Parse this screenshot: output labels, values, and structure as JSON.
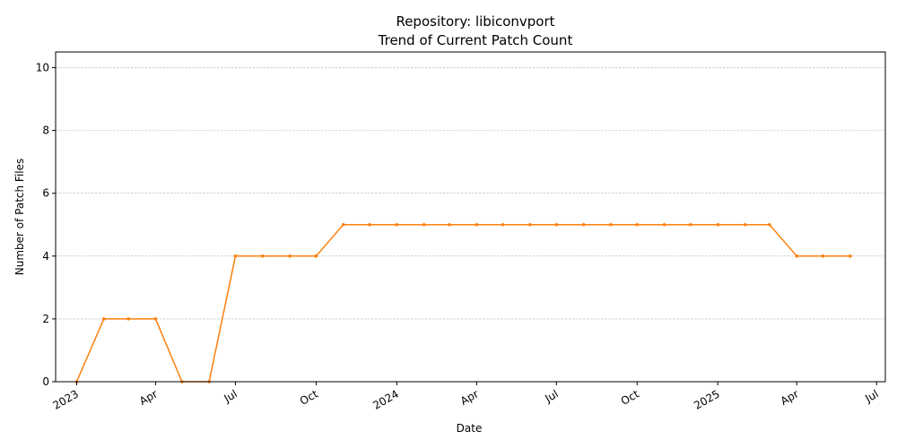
{
  "chart_data": {
    "type": "line",
    "title": "Repository: libiconvport",
    "subtitle": "Trend of Current Patch Count",
    "xlabel": "Date",
    "ylabel": "Number of Patch Files",
    "xlim": [
      "2022-12-08",
      "2025-07-11"
    ],
    "ylim": [
      0,
      10.5
    ],
    "grid": "horizontal dashed",
    "color": "#ff7f0e",
    "grid_color": "#b0b0b0",
    "x_ticks": [
      {
        "date": "2023-01-01",
        "label": "2023"
      },
      {
        "date": "2023-04-01",
        "label": "Apr"
      },
      {
        "date": "2023-07-01",
        "label": "Jul"
      },
      {
        "date": "2023-10-01",
        "label": "Oct"
      },
      {
        "date": "2024-01-01",
        "label": "2024"
      },
      {
        "date": "2024-04-01",
        "label": "Apr"
      },
      {
        "date": "2024-07-01",
        "label": "Jul"
      },
      {
        "date": "2024-10-01",
        "label": "Oct"
      },
      {
        "date": "2025-01-01",
        "label": "2025"
      },
      {
        "date": "2025-04-01",
        "label": "Apr"
      },
      {
        "date": "2025-07-01",
        "label": "Jul"
      }
    ],
    "y_ticks": [
      0,
      2,
      4,
      6,
      8,
      10
    ],
    "series": [
      {
        "x": [
          "2023-01-01",
          "2023-02-01",
          "2023-03-01",
          "2023-04-01",
          "2023-05-01",
          "2023-06-01",
          "2023-07-01",
          "2023-08-01",
          "2023-09-01",
          "2023-10-01",
          "2023-11-01",
          "2023-12-01",
          "2024-01-01",
          "2024-02-01",
          "2024-03-01",
          "2024-04-01",
          "2024-05-01",
          "2024-06-01",
          "2024-07-01",
          "2024-08-01",
          "2024-09-01",
          "2024-10-01",
          "2024-11-01",
          "2024-12-01",
          "2025-01-01",
          "2025-02-01",
          "2025-03-01",
          "2025-04-01",
          "2025-05-01",
          "2025-06-01"
        ],
        "y": [
          0,
          2,
          2,
          2,
          0,
          0,
          4,
          4,
          4,
          4,
          5,
          5,
          5,
          5,
          5,
          5,
          5,
          5,
          5,
          5,
          5,
          5,
          5,
          5,
          5,
          5,
          5,
          4,
          4,
          4
        ]
      }
    ]
  }
}
